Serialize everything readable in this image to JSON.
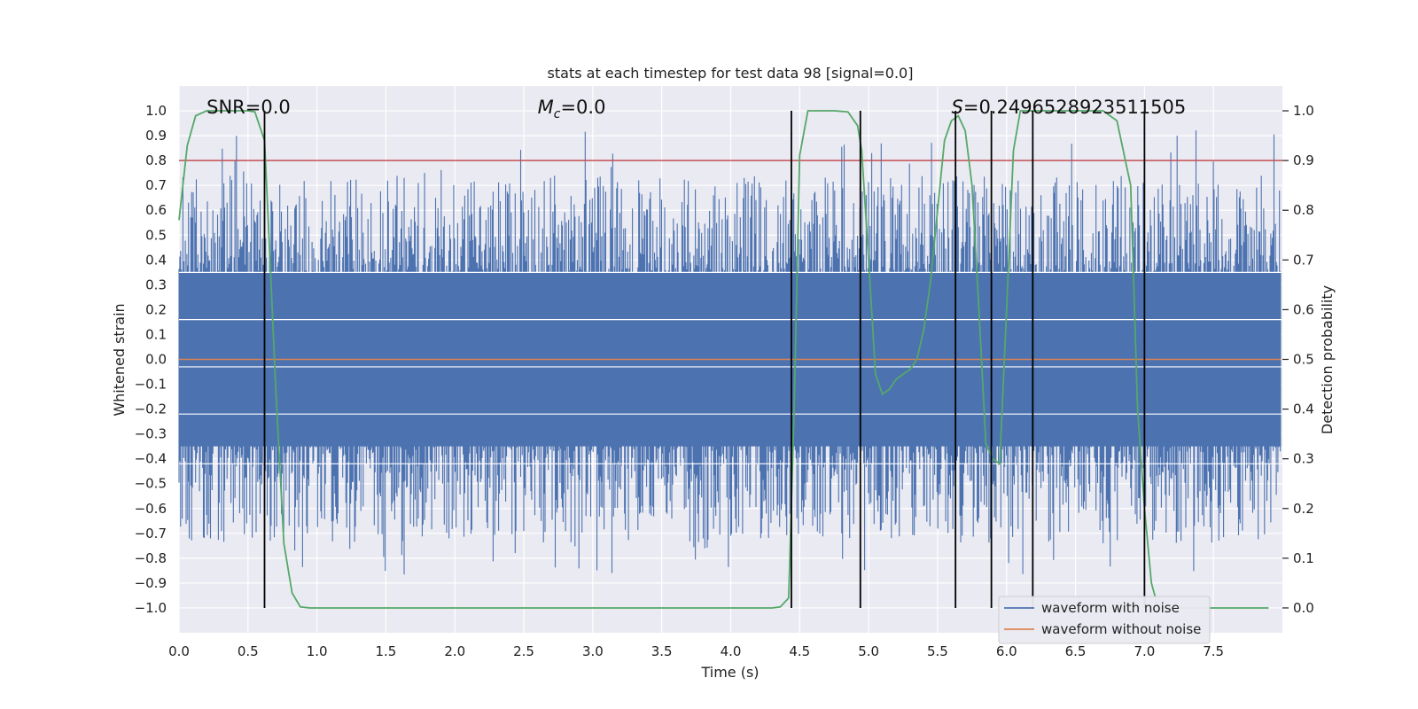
{
  "chart_data": {
    "type": "line",
    "title": "stats at each timestep for test data 98 [signal=0.0]",
    "xlabel": "Time (s)",
    "ylabel": "Whitened strain",
    "y2label": "Detection probability",
    "xlim": [
      0.0,
      8.0
    ],
    "ylim": [
      -1.1,
      1.1
    ],
    "y2lim": [
      -0.05,
      1.05
    ],
    "xticks": [
      0.0,
      0.5,
      1.0,
      1.5,
      2.0,
      2.5,
      3.0,
      3.5,
      4.0,
      4.5,
      5.0,
      5.5,
      6.0,
      6.5,
      7.0,
      7.5
    ],
    "xtick_labels": [
      "0.0",
      "0.5",
      "1.0",
      "1.5",
      "2.0",
      "2.5",
      "3.0",
      "3.5",
      "4.0",
      "4.5",
      "5.0",
      "5.5",
      "6.0",
      "6.5",
      "7.0",
      "7.5"
    ],
    "yticks": [
      1.0,
      0.9,
      0.8,
      0.7,
      0.6,
      0.5,
      0.4,
      0.3,
      0.2,
      0.1,
      0.0,
      -0.1,
      -0.2,
      -0.3,
      -0.4,
      -0.5,
      -0.6,
      -0.7,
      -0.8,
      -0.9,
      -1.0
    ],
    "ytick_labels": [
      "1.0",
      "0.9",
      "0.8",
      "0.7",
      "0.6",
      "0.5",
      "0.4",
      "0.3",
      "0.2",
      "0.1",
      "0.0",
      "−0.1",
      "−0.2",
      "−0.3",
      "−0.4",
      "−0.5",
      "−0.6",
      "−0.7",
      "−0.8",
      "−0.9",
      "−1.0"
    ],
    "y2ticks": [
      1.0,
      0.9,
      0.8,
      0.7,
      0.6,
      0.5,
      0.4,
      0.3,
      0.2,
      0.1,
      0.0
    ],
    "y2tick_labels": [
      "1.0",
      "0.9",
      "0.8",
      "0.7",
      "0.6",
      "0.5",
      "0.4",
      "0.3",
      "0.2",
      "0.1",
      "0.0"
    ],
    "noise_band": {
      "name": "waveform with noise",
      "color": "#4c72b0",
      "dense_amplitude": 0.35,
      "max_amplitude": 0.93,
      "min_amplitude": -0.87
    },
    "clean_waveform": {
      "name": "waveform without noise",
      "color": "#dd8452",
      "value": 0.0
    },
    "threshold": {
      "value": 0.9,
      "color": "#c44e52"
    },
    "detection_probability": {
      "color": "#55a868",
      "t": [
        0.0,
        0.06,
        0.12,
        0.2,
        0.3,
        0.4,
        0.5,
        0.55,
        0.62,
        0.66,
        0.7,
        0.76,
        0.82,
        0.88,
        0.95,
        1.0,
        1.5,
        2.0,
        2.5,
        3.0,
        3.5,
        4.0,
        4.2,
        4.3,
        4.36,
        4.42,
        4.46,
        4.5,
        4.56,
        4.65,
        4.75,
        4.85,
        4.92,
        4.95,
        5.0,
        5.05,
        5.1,
        5.15,
        5.2,
        5.25,
        5.3,
        5.35,
        5.4,
        5.45,
        5.5,
        5.55,
        5.6,
        5.65,
        5.7,
        5.75,
        5.8,
        5.85,
        5.9,
        5.95,
        6.0,
        6.05,
        6.1,
        6.15,
        6.2,
        6.25,
        6.3,
        6.4,
        6.5,
        6.6,
        6.7,
        6.8,
        6.9,
        6.95,
        7.0,
        7.05,
        7.1,
        7.15,
        7.2,
        7.3,
        7.5,
        7.9
      ],
      "p": [
        0.78,
        0.93,
        0.99,
        1.0,
        1.0,
        1.0,
        1.0,
        0.998,
        0.94,
        0.7,
        0.45,
        0.13,
        0.03,
        0.002,
        0.0,
        0.0,
        0.0,
        0.0,
        0.0,
        0.0,
        0.0,
        0.0,
        0.0,
        0.0,
        0.002,
        0.02,
        0.4,
        0.91,
        1.0,
        1.0,
        1.0,
        0.998,
        0.97,
        0.92,
        0.7,
        0.47,
        0.43,
        0.44,
        0.46,
        0.47,
        0.48,
        0.5,
        0.56,
        0.66,
        0.8,
        0.94,
        0.98,
        0.99,
        0.96,
        0.85,
        0.6,
        0.33,
        0.3,
        0.29,
        0.6,
        0.92,
        1.0,
        1.0,
        1.0,
        1.0,
        1.0,
        1.0,
        1.0,
        1.0,
        1.0,
        0.98,
        0.85,
        0.4,
        0.2,
        0.05,
        0.0,
        0.0,
        0.0,
        0.0,
        0.0,
        0.0
      ]
    },
    "vertical_markers": [
      0.62,
      4.44,
      4.94,
      5.63,
      5.89,
      6.19,
      7.0
    ],
    "white_hlines_strain": [
      -0.22,
      -0.03,
      0.16,
      0.35,
      -0.42
    ],
    "annotations": [
      {
        "text": "SNR=0.0",
        "x": 0.2,
        "y": 0.99
      },
      {
        "sym": "M",
        "sub": "c",
        "text": "=0.0",
        "x": 2.6,
        "y": 0.99
      },
      {
        "sym": "S",
        "text": "=0.2496528923511505",
        "x": 5.6,
        "y": 0.99
      }
    ],
    "legend": {
      "placement": "lower-right",
      "entries": [
        {
          "label": "waveform with noise",
          "color": "#4c72b0"
        },
        {
          "label": "waveform without noise",
          "color": "#dd8452"
        }
      ]
    }
  }
}
